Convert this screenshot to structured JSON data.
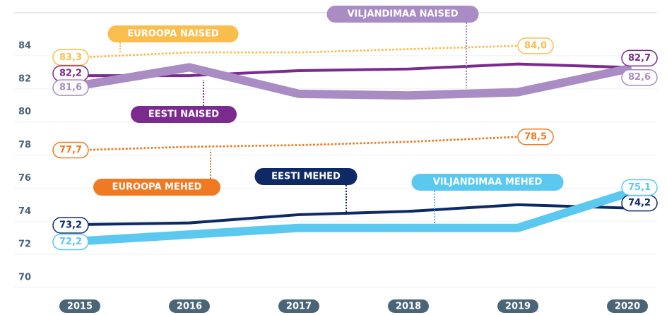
{
  "chart_data": {
    "type": "line",
    "categories": [
      "2015",
      "2016",
      "2017",
      "2018",
      "2019",
      "2020"
    ],
    "ylim": [
      70,
      86
    ],
    "yticks": [
      70,
      72,
      74,
      76,
      78,
      80,
      82,
      84
    ],
    "grid": true,
    "series": [
      {
        "name": "EUROOPA NAISED",
        "color": "#f9be4e",
        "style": "dotted",
        "width": 3,
        "values": [
          83.3,
          83.6,
          83.6,
          83.8,
          84.0,
          null
        ],
        "value_labels": [
          "83,3",
          null,
          null,
          null,
          "84,0",
          null
        ]
      },
      {
        "name": "EESTI NAISED",
        "color": "#7b2a8e",
        "style": "solid",
        "width": 4,
        "values": [
          82.2,
          82.2,
          82.5,
          82.6,
          82.9,
          82.7
        ],
        "value_labels": [
          "82,2",
          null,
          null,
          null,
          null,
          "82,7"
        ]
      },
      {
        "name": "VILJANDIMAA NAISED",
        "color": "#a98cc4",
        "style": "solid",
        "width": 12,
        "values": [
          81.6,
          82.7,
          81.1,
          81.0,
          81.2,
          82.6
        ],
        "value_labels": [
          "81,6",
          null,
          null,
          null,
          null,
          "82,6"
        ]
      },
      {
        "name": "EUROOPA MEHED",
        "color": "#f07a22",
        "style": "dotted",
        "width": 3,
        "values": [
          77.7,
          77.9,
          78.0,
          78.2,
          78.5,
          null
        ],
        "value_labels": [
          "77,7",
          null,
          null,
          null,
          "78,5",
          null
        ]
      },
      {
        "name": "EESTI MEHED",
        "color": "#0d2a66",
        "style": "solid",
        "width": 4,
        "values": [
          73.2,
          73.3,
          73.8,
          74.0,
          74.4,
          74.2
        ],
        "value_labels": [
          "73,2",
          null,
          null,
          null,
          null,
          "74,2"
        ]
      },
      {
        "name": "VILJANDIMAA MEHED",
        "color": "#5bc8f0",
        "style": "solid",
        "width": 12,
        "values": [
          72.2,
          72.6,
          73.0,
          73.0,
          73.0,
          75.1
        ],
        "value_labels": [
          "72,2",
          null,
          null,
          null,
          null,
          "75,1"
        ]
      }
    ]
  }
}
